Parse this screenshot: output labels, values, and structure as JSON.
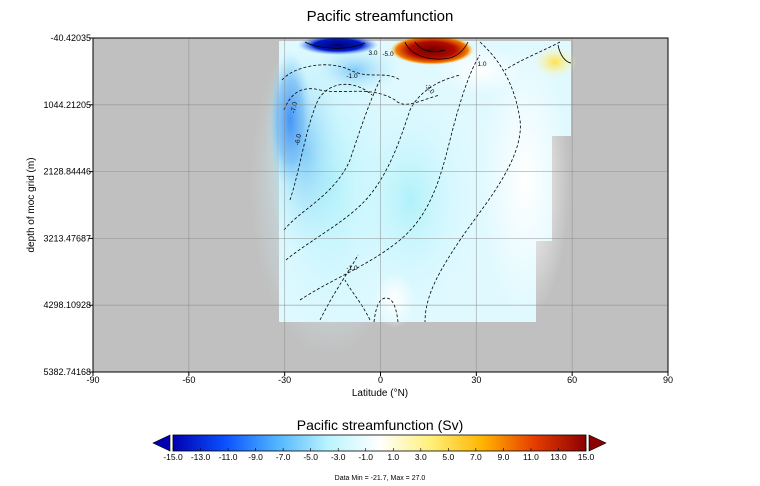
{
  "chart_data": {
    "type": "heatmap",
    "title": "Pacific streamfunction",
    "xlabel": "Latitude (°N)",
    "ylabel": "depth of moc grid (m)",
    "xlim": [
      -90,
      90
    ],
    "xticks": [
      -90,
      -60,
      -30,
      0,
      30,
      60,
      90
    ],
    "xtick_labels": [
      "-90",
      "-60",
      "-30",
      "0",
      "30",
      "60",
      "90"
    ],
    "ylim": [
      -40.42035,
      5382.74168
    ],
    "yticks": [
      -40.42035,
      1044.21205,
      2128.84446,
      3213.47687,
      4298.10928,
      5382.74168
    ],
    "ytick_labels": [
      "-40.42035",
      "1044.21205",
      "2128.84446",
      "3213.47687",
      "4298.10928",
      "5382.74168"
    ],
    "grid": true,
    "missing_color": "#c0c0c0",
    "colorbar": {
      "title": "Pacific streamfunction (Sv)",
      "range": [
        -15,
        15
      ],
      "tick_values": [
        -15,
        -13,
        -11,
        -9,
        -7,
        -5,
        -3,
        -1,
        1,
        3,
        5,
        7,
        9,
        11,
        13,
        15
      ],
      "tick_labels": [
        "-15.0",
        "-13.0",
        "-11.0",
        "-9.0",
        "-7.0",
        "-5.0",
        "-3.0",
        "-1.0",
        "1.0",
        "3.0",
        "5.0",
        "7.0",
        "9.0",
        "11.0",
        "13.0",
        "15.0"
      ],
      "colors": [
        "#0000b0",
        "#0a50ff",
        "#4fb4ff",
        "#b9f4ff",
        "#ffffff",
        "#fff078",
        "#ffb400",
        "#e63c00",
        "#8c0000"
      ],
      "extend": "both"
    },
    "contour_labels": [
      "-1.0",
      "-5.0",
      "-7.0",
      "-3.0",
      "3.0",
      "-6.0",
      "-1.0",
      "1.0"
    ],
    "data_min": -21.7,
    "data_max": 27.0,
    "footnote": "Data Min = -21.7, Max = 27.0"
  }
}
